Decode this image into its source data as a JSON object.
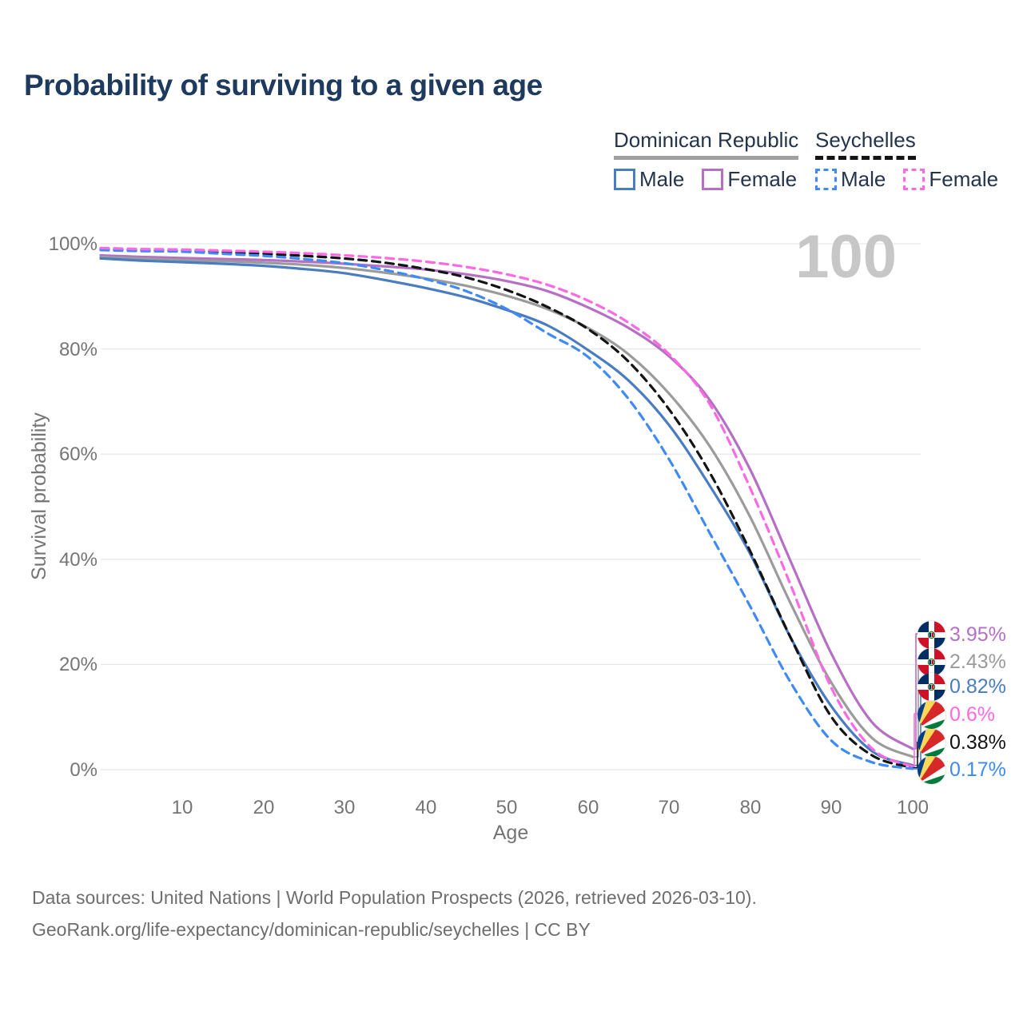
{
  "title": "Probability of surviving to a given age",
  "watermark": "100",
  "legend": {
    "groups": [
      {
        "label": "Dominican Republic",
        "line_style": "solid",
        "underline_color": "#a0a0a0",
        "items": [
          {
            "label": "Male",
            "color": "#4a7cc2",
            "dashed": false
          },
          {
            "label": "Female",
            "color": "#b570c4",
            "dashed": false
          }
        ]
      },
      {
        "label": "Seychelles",
        "line_style": "dashed",
        "underline_color": "#141414",
        "items": [
          {
            "label": "Male",
            "color": "#3f8af5",
            "dashed": true
          },
          {
            "label": "Female",
            "color": "#fb6ae2",
            "dashed": true
          }
        ]
      }
    ]
  },
  "chart_data": {
    "type": "line",
    "title": "Probability of surviving to a given age",
    "xlabel": "Age",
    "ylabel": "Survival probability",
    "xlim": [
      0,
      100
    ],
    "ylim": [
      0,
      100
    ],
    "grid": "horizontal",
    "x_ticks": [
      "10",
      "20",
      "30",
      "40",
      "50",
      "60",
      "70",
      "80",
      "90",
      "100"
    ],
    "x_tick_values": [
      10,
      20,
      30,
      40,
      50,
      60,
      70,
      80,
      90,
      100
    ],
    "y_ticks": [
      "0%",
      "20%",
      "40%",
      "60%",
      "80%",
      "100%"
    ],
    "y_tick_values": [
      0,
      20,
      40,
      60,
      80,
      100
    ],
    "x": [
      0,
      5,
      10,
      15,
      20,
      25,
      30,
      35,
      40,
      45,
      50,
      55,
      60,
      65,
      70,
      75,
      80,
      85,
      90,
      95,
      100
    ],
    "series": [
      {
        "name": "Dominican Republic Female",
        "color": "#b570c4",
        "dashed": false,
        "end_label": "3.95%",
        "row": 0,
        "values": [
          97.8,
          97.5,
          97.3,
          97.1,
          96.9,
          96.6,
          96.2,
          95.7,
          95.1,
          94.2,
          92.9,
          91.0,
          87.9,
          84.0,
          78.6,
          70.3,
          57.0,
          39.5,
          22.0,
          9.0,
          3.95
        ]
      },
      {
        "name": "Dominican Republic Both sexes",
        "color": "#9b9b9b",
        "dashed": false,
        "end_label": "2.43%",
        "row": 1,
        "values": [
          97.5,
          97.2,
          96.9,
          96.7,
          96.4,
          96.0,
          95.4,
          94.5,
          93.4,
          92.0,
          90.1,
          87.6,
          84.0,
          79.0,
          71.5,
          61.5,
          48.0,
          31.5,
          16.5,
          6.0,
          2.43
        ]
      },
      {
        "name": "Dominican Republic Male",
        "color": "#4a7cc2",
        "dashed": false,
        "end_label": "0.82%",
        "row": 2,
        "values": [
          97.2,
          96.8,
          96.5,
          96.2,
          95.8,
          95.2,
          94.4,
          93.1,
          91.6,
          89.8,
          87.4,
          84.5,
          79.8,
          74.0,
          65.5,
          54.0,
          41.0,
          25.0,
          12.0,
          3.5,
          0.82
        ]
      },
      {
        "name": "Seychelles Both sexes",
        "color": "#141414",
        "dashed": true,
        "end_label": "0.38%",
        "row": 4,
        "values": [
          99.0,
          98.8,
          98.7,
          98.4,
          98.1,
          97.7,
          97.2,
          96.4,
          95.2,
          93.6,
          91.2,
          88.0,
          83.8,
          77.6,
          68.5,
          56.5,
          41.5,
          25.0,
          10.0,
          2.7,
          0.38
        ]
      },
      {
        "name": "Seychelles Male",
        "color": "#3f8af5",
        "dashed": true,
        "end_label": "0.17%",
        "row": 5,
        "values": [
          98.8,
          98.6,
          98.5,
          98.1,
          97.7,
          97.1,
          96.3,
          95.0,
          93.3,
          91.0,
          87.6,
          83.0,
          78.5,
          70.5,
          59.0,
          45.0,
          31.0,
          16.5,
          5.5,
          1.4,
          0.17
        ]
      },
      {
        "name": "Seychelles Female",
        "color": "#fb6ae2",
        "dashed": true,
        "end_label": "0.6%",
        "row": 3,
        "values": [
          99.2,
          99.0,
          98.9,
          98.7,
          98.5,
          98.2,
          97.8,
          97.3,
          96.6,
          95.6,
          94.2,
          92.2,
          89.2,
          85.0,
          79.0,
          69.5,
          53.5,
          35.0,
          15.5,
          4.0,
          0.6
        ]
      }
    ],
    "age_counter": "100"
  },
  "end_labels": [
    {
      "value": "3.95%",
      "color": "#b570c4",
      "country": "Dominican Republic"
    },
    {
      "value": "2.43%",
      "color": "#9b9b9b",
      "country": "Dominican Republic"
    },
    {
      "value": "0.82%",
      "color": "#4a7cc2",
      "country": "Dominican Republic"
    },
    {
      "value": "0.6%",
      "color": "#fb6ae2",
      "country": "Seychelles"
    },
    {
      "value": "0.38%",
      "color": "#141414",
      "country": "Seychelles"
    },
    {
      "value": "0.17%",
      "color": "#3f8af5",
      "country": "Seychelles"
    }
  ],
  "source": {
    "line1": "Data sources: United Nations | World Population Prospects (2026, retrieved 2026-03-10).",
    "line2": "GeoRank.org/life-expectancy/dominican-republic/seychelles | CC BY"
  }
}
